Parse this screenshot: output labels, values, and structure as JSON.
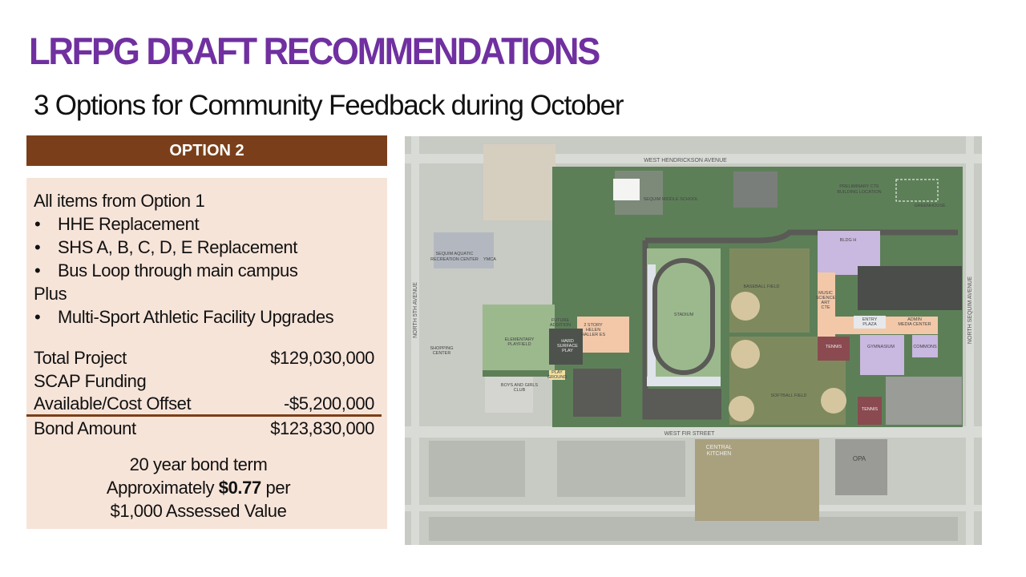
{
  "title": "LRFPG DRAFT RECOMMENDATIONS",
  "subtitle": "3 Options for Community Feedback during October",
  "option": {
    "label": "OPTION 2",
    "intro": "All items from Option 1",
    "items": [
      "HHE Replacement",
      "SHS A, B, C, D, E Replacement",
      "Bus Loop through main campus"
    ],
    "plus": "Plus",
    "plus_items": [
      "Multi-Sport Athletic Facility Upgrades"
    ],
    "costs": {
      "total_label": "Total Project",
      "total_value": "$129,030,000",
      "scap_label_1": "SCAP Funding",
      "scap_label_2": "Available/Cost Offset",
      "scap_value": "-$5,200,000",
      "bond_label": "Bond Amount",
      "bond_value": "$123,830,000"
    },
    "term": {
      "line1": "20 year bond term",
      "line2_pre": "Approximately ",
      "rate": "$0.77",
      "line2_post": " per",
      "line3": "$1,000 Assessed Value"
    }
  },
  "map": {
    "roads": {
      "north": "WEST HENDRICKSON AVENUE",
      "south": "WEST FIR STREET",
      "west": "NORTH 5TH AVENUE",
      "east": "NORTH SEQUIM AVENUE"
    },
    "labels": {
      "middle_school": "SEQUIM MIDDLE SCHOOL",
      "cte": "PRELIMINARY CTE",
      "cte2": "BUILDING LOCATION",
      "greenhouse": "GREENHOUSE",
      "aquatic": "SEQUIM AQUATIC",
      "aquatic2": "RECREATION CENTER",
      "ymca": "YMCA",
      "bldg_h": "BLDG H",
      "baseball": "BASEBALL FIELD",
      "stadium": "STADIUM",
      "music": "MUSIC",
      "science": "SCIENCE",
      "art": "ART",
      "cte_bldg": "CTE",
      "entry": "ENTRY",
      "plaza": "PLAZA",
      "admin": "ADMIN",
      "media": "MEDIA CENTER",
      "future": "FUTURE",
      "addition": "ADDITION",
      "haller1": "2 STORY",
      "haller2": "HELEN",
      "haller3": "HALLER ES",
      "playfield1": "ELEMENTARY",
      "playfield2": "PLAYFIELD",
      "hard1": "HARD",
      "hard2": "SURFACE",
      "hard3": "PLAY",
      "shopping1": "SHOPPING",
      "shopping2": "CENTER",
      "tennis": "TENNIS",
      "gym": "GYMNASIUM",
      "commons": "COMMONS",
      "play1": "PLAY",
      "play2": "GROUND",
      "bgc1": "BOYS AND GIRLS",
      "bgc2": "CLUB",
      "softball": "SOFTBALL FIELD",
      "kitchen1": "CENTRAL",
      "kitchen2": "KITCHEN",
      "opa": "OPA"
    },
    "colors": {
      "campus": "#5d7f58",
      "field": "#9cb98e",
      "building": "#f2c8a8",
      "existing": "#c9b8df",
      "road": "#5a5a56"
    }
  }
}
